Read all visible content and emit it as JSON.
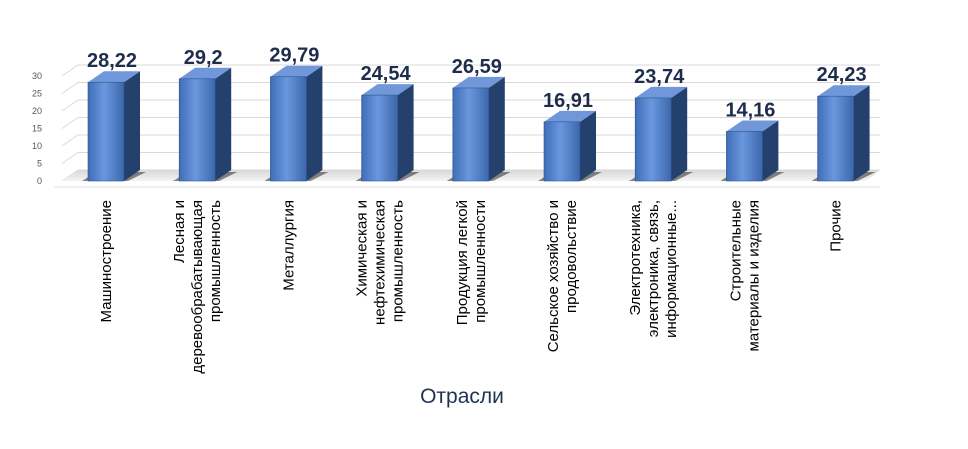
{
  "chart_data": {
    "type": "bar",
    "style": "3d-column",
    "title": "",
    "xlabel": "Отрасли",
    "ylabel": "",
    "ylim": [
      0,
      30
    ],
    "yticks": [
      "0",
      "5",
      "10",
      "15",
      "20",
      "25",
      "30"
    ],
    "grid": true,
    "legend": "none",
    "categories": [
      [
        "Машиностроение"
      ],
      [
        "Лесная и",
        "деревообрабатывающая",
        "промышленность"
      ],
      [
        "Металлургия"
      ],
      [
        "Химическая и",
        "нефтехимическая",
        "промышленность"
      ],
      [
        "Продукция легкой",
        "промышленности"
      ],
      [
        "Сельское хозяйство и",
        "продовольствие"
      ],
      [
        "Электротехника,",
        "электроника, связь,",
        "информационные..."
      ],
      [
        "Строительные",
        "материалы  и изделия"
      ],
      [
        "Прочие"
      ]
    ],
    "values": [
      28.22,
      29.2,
      29.79,
      24.54,
      26.59,
      16.91,
      23.74,
      14.16,
      24.23
    ],
    "data_labels": [
      "28,22",
      "29,2",
      "29,79",
      "24,54",
      "26,59",
      "16,91",
      "23,74",
      "14,16",
      "24,23"
    ],
    "colors": {
      "bar_front": "#4f7fcc",
      "bar_side": "#24416e",
      "bar_top": "#6f97d9",
      "label": "#1f2d4d",
      "grid": "#d9d9d9"
    }
  }
}
